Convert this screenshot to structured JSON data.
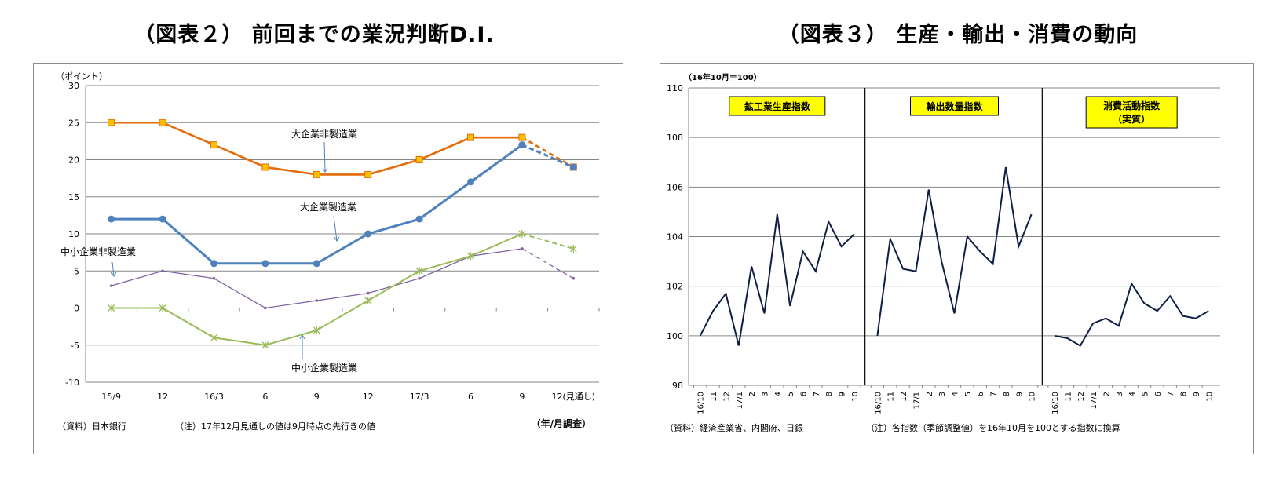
{
  "chart_data": [
    {
      "type": "line",
      "title": "（図表２） 前回までの業況判断D.I.",
      "ylabel": "（ポイント）",
      "xlabel": "（年/月調査）",
      "ylim": [
        -10,
        30
      ],
      "yticks": [
        -10,
        -5,
        0,
        5,
        10,
        15,
        20,
        25,
        30
      ],
      "grid": true,
      "categories": [
        "15/9",
        "12",
        "16/3",
        "6",
        "9",
        "12",
        "17/3",
        "6",
        "9",
        "12(見通し)"
      ],
      "series": [
        {
          "name": "大企業非製造業",
          "color": "#E46C0A",
          "marker": "square",
          "values": [
            25,
            25,
            22,
            19,
            18,
            18,
            20,
            23,
            23,
            19
          ]
        },
        {
          "name": "大企業製造業",
          "color": "#4F81BD",
          "marker": "circle",
          "values": [
            12,
            12,
            6,
            6,
            6,
            10,
            12,
            17,
            22,
            19
          ]
        },
        {
          "name": "中小企業非製造業",
          "color": "#8064A2",
          "marker": "dot",
          "values": [
            3,
            5,
            4,
            0,
            1,
            2,
            4,
            7,
            8,
            4
          ]
        },
        {
          "name": "中小企業製造業",
          "color": "#9BBB59",
          "marker": "star",
          "values": [
            0,
            0,
            -4,
            -5,
            -3,
            1,
            5,
            7,
            10,
            8
          ]
        }
      ],
      "source_note": "（資料）日本銀行",
      "note": "（注）17年12月見通しの値は9月時点の先行きの値"
    },
    {
      "type": "line",
      "title": "（図表３） 生産・輸出・消費の動向",
      "ylabel": "（16年10月＝100）",
      "ylim": [
        98,
        110
      ],
      "yticks": [
        98,
        100,
        102,
        104,
        106,
        108,
        110
      ],
      "grid": true,
      "categories": [
        "16/10",
        "11",
        "12",
        "17/1",
        "2",
        "3",
        "4",
        "5",
        "6",
        "7",
        "8",
        "9",
        "10"
      ],
      "series": [
        {
          "name": "鉱工業生産指数",
          "color": "#0F1E46",
          "values": [
            100.0,
            101.0,
            101.7,
            99.6,
            102.8,
            100.9,
            104.9,
            101.2,
            103.4,
            102.6,
            104.6,
            103.6,
            104.1
          ]
        },
        {
          "name": "輸出数量指数",
          "color": "#0F1E46",
          "values": [
            100.0,
            103.9,
            102.7,
            102.6,
            105.9,
            103.0,
            100.9,
            104.0,
            103.4,
            102.9,
            106.8,
            103.6,
            104.9
          ]
        },
        {
          "name": "消費活動指数（実質）",
          "color": "#0F1E46",
          "values": [
            100.0,
            99.9,
            99.6,
            100.5,
            100.7,
            100.4,
            102.1,
            101.3,
            101.0,
            101.6,
            100.8,
            100.7,
            101.0
          ]
        }
      ],
      "source_note": "（資料）経済産業省、内閣府、日銀",
      "note": "（注）各指数（季節調整値）を16年10月を100とする指数に換算"
    }
  ]
}
